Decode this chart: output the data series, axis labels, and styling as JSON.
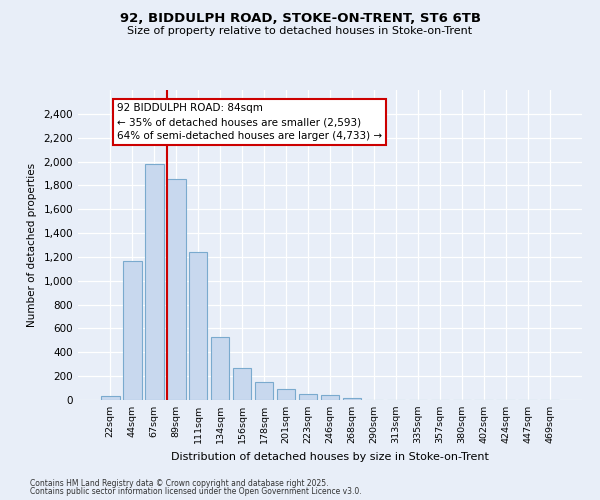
{
  "title1": "92, BIDDULPH ROAD, STOKE-ON-TRENT, ST6 6TB",
  "title2": "Size of property relative to detached houses in Stoke-on-Trent",
  "xlabel": "Distribution of detached houses by size in Stoke-on-Trent",
  "ylabel": "Number of detached properties",
  "bar_labels": [
    "22sqm",
    "44sqm",
    "67sqm",
    "89sqm",
    "111sqm",
    "134sqm",
    "156sqm",
    "178sqm",
    "201sqm",
    "223sqm",
    "246sqm",
    "268sqm",
    "290sqm",
    "313sqm",
    "335sqm",
    "357sqm",
    "380sqm",
    "402sqm",
    "424sqm",
    "447sqm",
    "469sqm"
  ],
  "bar_values": [
    30,
    1170,
    1980,
    1855,
    1245,
    525,
    270,
    155,
    95,
    50,
    40,
    20,
    0,
    0,
    0,
    0,
    0,
    0,
    0,
    0,
    0
  ],
  "bar_color": "#c8d8ee",
  "bar_edgecolor": "#7aaace",
  "vline_color": "#cc0000",
  "annotation_line1": "92 BIDDULPH ROAD: 84sqm",
  "annotation_line2": "← 35% of detached houses are smaller (2,593)",
  "annotation_line3": "64% of semi-detached houses are larger (4,733) →",
  "ylim_max": 2600,
  "yticks": [
    0,
    200,
    400,
    600,
    800,
    1000,
    1200,
    1400,
    1600,
    1800,
    2000,
    2200,
    2400
  ],
  "bg_color": "#e8eef8",
  "grid_color": "#ffffff",
  "footer1": "Contains HM Land Registry data © Crown copyright and database right 2025.",
  "footer2": "Contains public sector information licensed under the Open Government Licence v3.0."
}
